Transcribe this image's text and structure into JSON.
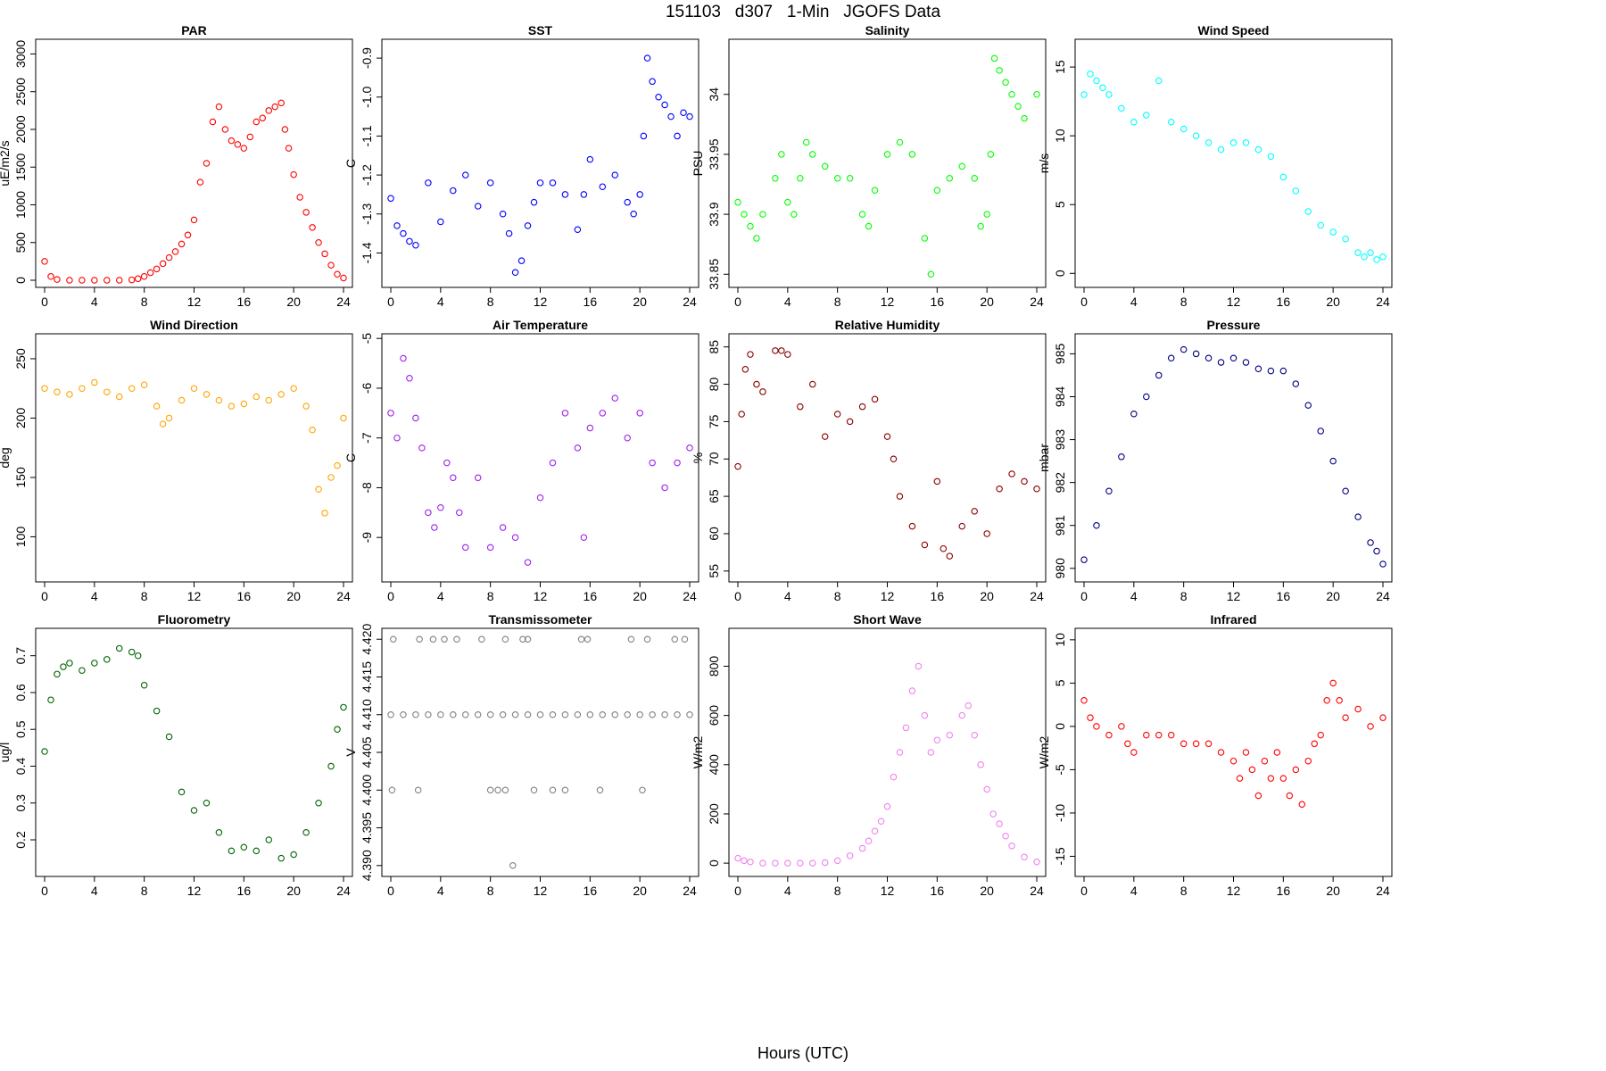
{
  "figure": {
    "title": "151103   d307   1-Min   JGOFS Data",
    "xlabel": "Hours (UTC)"
  },
  "chart_data": [
    {
      "type": "scatter",
      "title": "PAR",
      "ylabel": "uE/m2/s",
      "color": "#ff0000",
      "xlim": [
        0,
        24
      ],
      "ylim": [
        0,
        3100
      ],
      "xticks": [
        0,
        4,
        8,
        12,
        16,
        20,
        24
      ],
      "yticks": [
        0,
        500,
        1000,
        1500,
        2000,
        2500,
        3000
      ],
      "x": [
        0,
        0.5,
        1,
        2,
        3,
        4,
        5,
        6,
        7,
        7.5,
        8,
        8.5,
        9,
        9.5,
        10,
        10.5,
        11,
        11.5,
        12,
        12.5,
        13,
        13.5,
        14,
        14.5,
        15,
        15.5,
        16,
        16.5,
        17,
        17.5,
        18,
        18.5,
        19,
        19.3,
        19.6,
        20,
        20.5,
        21,
        21.5,
        22,
        22.5,
        23,
        23.5,
        24
      ],
      "y": [
        250,
        50,
        10,
        0,
        0,
        0,
        0,
        0,
        5,
        20,
        50,
        100,
        150,
        220,
        300,
        380,
        480,
        600,
        800,
        1300,
        1550,
        2100,
        2300,
        2000,
        1850,
        1800,
        1750,
        1900,
        2100,
        2150,
        2250,
        2300,
        2350,
        2000,
        1750,
        1400,
        1100,
        900,
        700,
        500,
        350,
        200,
        80,
        30
      ]
    },
    {
      "type": "scatter",
      "title": "SST",
      "ylabel": "C",
      "color": "#0000ff",
      "xlim": [
        0,
        24
      ],
      "ylim": [
        -1.47,
        -0.87
      ],
      "xticks": [
        0,
        4,
        8,
        12,
        16,
        20,
        24
      ],
      "yticks": [
        -1.4,
        -1.3,
        -1.2,
        -1.1,
        -1.0,
        -0.9
      ],
      "x": [
        0,
        0.5,
        1,
        1.5,
        2,
        3,
        4,
        5,
        6,
        7,
        8,
        9,
        9.5,
        10,
        10.5,
        11,
        11.5,
        12,
        13,
        14,
        15,
        15.5,
        16,
        17,
        18,
        19,
        19.5,
        20,
        20.3,
        20.6,
        21,
        21.5,
        22,
        22.5,
        23,
        23.5,
        24
      ],
      "y": [
        -1.26,
        -1.33,
        -1.35,
        -1.37,
        -1.38,
        -1.22,
        -1.32,
        -1.24,
        -1.2,
        -1.28,
        -1.22,
        -1.3,
        -1.35,
        -1.45,
        -1.42,
        -1.33,
        -1.27,
        -1.22,
        -1.22,
        -1.25,
        -1.34,
        -1.25,
        -1.16,
        -1.23,
        -1.2,
        -1.27,
        -1.3,
        -1.25,
        -1.1,
        -0.9,
        -0.96,
        -1.0,
        -1.02,
        -1.05,
        -1.1,
        -1.04,
        -1.05
      ]
    },
    {
      "type": "scatter",
      "title": "Salinity",
      "ylabel": "PSU",
      "color": "#00ff00",
      "xlim": [
        0,
        24
      ],
      "ylim": [
        33.845,
        34.04
      ],
      "xticks": [
        0,
        4,
        8,
        12,
        16,
        20,
        24
      ],
      "yticks": [
        33.85,
        33.9,
        33.95,
        34.0
      ],
      "x": [
        0,
        0.5,
        1,
        1.5,
        2,
        3,
        3.5,
        4,
        4.5,
        5,
        5.5,
        6,
        7,
        8,
        9,
        10,
        10.5,
        11,
        12,
        13,
        14,
        15,
        15.5,
        16,
        17,
        18,
        19,
        19.5,
        20,
        20.3,
        20.6,
        21,
        21.5,
        22,
        22.5,
        23,
        24
      ],
      "y": [
        33.91,
        33.9,
        33.89,
        33.88,
        33.9,
        33.93,
        33.95,
        33.91,
        33.9,
        33.93,
        33.96,
        33.95,
        33.94,
        33.93,
        33.93,
        33.9,
        33.89,
        33.92,
        33.95,
        33.96,
        33.95,
        33.88,
        33.85,
        33.92,
        33.93,
        33.94,
        33.93,
        33.89,
        33.9,
        33.95,
        34.03,
        34.02,
        34.01,
        34.0,
        33.99,
        33.98,
        34.0
      ]
    },
    {
      "type": "scatter",
      "title": "Wind Speed",
      "ylabel": "m/s",
      "color": "#00ffff",
      "xlim": [
        0,
        24
      ],
      "ylim": [
        -0.5,
        16.5
      ],
      "xticks": [
        0,
        4,
        8,
        12,
        16,
        20,
        24
      ],
      "yticks": [
        0,
        5,
        10,
        15
      ],
      "x": [
        0,
        0.5,
        1,
        1.5,
        2,
        3,
        4,
        5,
        6,
        7,
        8,
        9,
        10,
        11,
        12,
        13,
        14,
        15,
        16,
        17,
        18,
        19,
        20,
        21,
        22,
        22.5,
        23,
        23.5,
        24
      ],
      "y": [
        13,
        14.5,
        14,
        13.5,
        13,
        12,
        11,
        11.5,
        14,
        11,
        10.5,
        10,
        9.5,
        9,
        9.5,
        9.5,
        9,
        8.5,
        7,
        6,
        4.5,
        3.5,
        3,
        2.5,
        1.5,
        1.2,
        1.5,
        1,
        1.2
      ]
    },
    {
      "type": "scatter",
      "title": "Wind Direction",
      "ylabel": "deg",
      "color": "#ffa500",
      "xlim": [
        0,
        24
      ],
      "ylim": [
        68,
        265
      ],
      "xticks": [
        0,
        4,
        8,
        12,
        16,
        20,
        24
      ],
      "yticks": [
        100,
        150,
        200,
        250
      ],
      "x": [
        0,
        1,
        2,
        3,
        4,
        5,
        6,
        7,
        8,
        9,
        9.5,
        10,
        11,
        12,
        13,
        14,
        15,
        16,
        17,
        18,
        19,
        20,
        21,
        21.5,
        22,
        22.5,
        23,
        23.5,
        24
      ],
      "y": [
        225,
        222,
        220,
        225,
        230,
        222,
        218,
        225,
        228,
        210,
        195,
        200,
        215,
        225,
        220,
        215,
        210,
        212,
        218,
        215,
        220,
        225,
        210,
        190,
        140,
        120,
        150,
        160,
        200
      ]
    },
    {
      "type": "scatter",
      "title": "Air Temperature",
      "ylabel": "C",
      "color": "#a020f0",
      "xlim": [
        0,
        24
      ],
      "ylim": [
        -9.75,
        -5.05
      ],
      "xticks": [
        0,
        4,
        8,
        12,
        16,
        20,
        24
      ],
      "yticks": [
        -9,
        -8,
        -7,
        -6,
        -5
      ],
      "x": [
        0,
        0.5,
        1,
        1.5,
        2,
        2.5,
        3,
        3.5,
        4,
        4.5,
        5,
        5.5,
        6,
        7,
        8,
        9,
        10,
        11,
        12,
        13,
        14,
        15,
        15.5,
        16,
        17,
        18,
        19,
        20,
        21,
        22,
        23,
        24
      ],
      "y": [
        -6.5,
        -7.0,
        -5.4,
        -5.8,
        -6.6,
        -7.2,
        -8.5,
        -8.8,
        -8.4,
        -7.5,
        -7.8,
        -8.5,
        -9.2,
        -7.8,
        -9.2,
        -8.8,
        -9.0,
        -9.5,
        -8.2,
        -7.5,
        -6.5,
        -7.2,
        -9.0,
        -6.8,
        -6.5,
        -6.2,
        -7.0,
        -6.5,
        -7.5,
        -8.0,
        -7.5,
        -7.2
      ]
    },
    {
      "type": "scatter",
      "title": "Relative Humidity",
      "ylabel": "%",
      "color": "#8b0000",
      "xlim": [
        0,
        24
      ],
      "ylim": [
        54.5,
        85.8
      ],
      "xticks": [
        0,
        4,
        8,
        12,
        16,
        20,
        24
      ],
      "yticks": [
        55,
        60,
        65,
        70,
        75,
        80,
        85
      ],
      "x": [
        0,
        0.3,
        0.6,
        1,
        1.5,
        2,
        3,
        3.5,
        4,
        5,
        6,
        7,
        8,
        9,
        10,
        11,
        12,
        12.5,
        13,
        14,
        15,
        16,
        16.5,
        17,
        18,
        19,
        20,
        21,
        22,
        23,
        24
      ],
      "y": [
        69,
        76,
        82,
        84,
        80,
        79,
        84.5,
        84.5,
        84,
        77,
        80,
        73,
        76,
        75,
        77,
        78,
        73,
        70,
        65,
        61,
        58.5,
        67,
        58,
        57,
        61,
        63,
        60,
        66,
        68,
        67,
        66
      ]
    },
    {
      "type": "scatter",
      "title": "Pressure",
      "ylabel": "mbar",
      "color": "#000080",
      "xlim": [
        0,
        24
      ],
      "ylim": [
        979.85,
        985.3
      ],
      "xticks": [
        0,
        4,
        8,
        12,
        16,
        20,
        24
      ],
      "yticks": [
        980,
        981,
        982,
        983,
        984,
        985
      ],
      "x": [
        0,
        1,
        2,
        3,
        4,
        5,
        6,
        7,
        8,
        9,
        10,
        11,
        12,
        13,
        14,
        15,
        16,
        17,
        18,
        19,
        20,
        21,
        22,
        23,
        23.5,
        24
      ],
      "y": [
        980.2,
        981.0,
        981.8,
        982.6,
        983.6,
        984.0,
        984.5,
        984.9,
        985.1,
        985.0,
        984.9,
        984.8,
        984.9,
        984.8,
        984.65,
        984.6,
        984.6,
        984.3,
        983.8,
        983.2,
        982.5,
        981.8,
        981.2,
        980.6,
        980.4,
        980.1
      ]
    },
    {
      "type": "scatter",
      "title": "Fluorometry",
      "ylabel": "ug/l",
      "color": "#006400",
      "xlim": [
        0,
        24
      ],
      "ylim": [
        0.12,
        0.755
      ],
      "xticks": [
        0,
        4,
        8,
        12,
        16,
        20,
        24
      ],
      "yticks": [
        0.2,
        0.3,
        0.4,
        0.5,
        0.6,
        0.7
      ],
      "x": [
        0,
        0.5,
        1,
        1.5,
        2,
        3,
        4,
        5,
        6,
        7,
        7.5,
        8,
        9,
        10,
        11,
        12,
        13,
        14,
        15,
        16,
        17,
        18,
        19,
        20,
        21,
        22,
        23,
        23.5,
        24
      ],
      "y": [
        0.44,
        0.58,
        0.65,
        0.67,
        0.68,
        0.66,
        0.68,
        0.69,
        0.72,
        0.71,
        0.7,
        0.62,
        0.55,
        0.48,
        0.33,
        0.28,
        0.3,
        0.22,
        0.17,
        0.18,
        0.17,
        0.2,
        0.15,
        0.16,
        0.22,
        0.3,
        0.4,
        0.5,
        0.56
      ]
    },
    {
      "type": "scatter",
      "title": "Transmissometer",
      "ylabel": "V",
      "color": "#808080",
      "xlim": [
        0,
        24
      ],
      "ylim": [
        4.3895,
        4.4205
      ],
      "xticks": [
        0,
        4,
        8,
        12,
        16,
        20,
        24
      ],
      "yticks": [
        4.39,
        4.395,
        4.4,
        4.405,
        4.41,
        4.415,
        4.42
      ],
      "x": [
        0,
        1,
        2,
        3,
        4,
        5,
        6,
        7,
        8,
        9,
        10,
        11,
        12,
        13,
        14,
        15,
        16,
        17,
        18,
        19,
        20,
        21,
        22,
        23,
        24,
        0.2,
        2.3,
        3.4,
        4.3,
        5.3,
        7.3,
        9.2,
        10.6,
        11,
        15.3,
        15.8,
        19.3,
        20.6,
        22.8,
        23.6,
        0.1,
        2.2,
        8,
        8.6,
        9.2,
        11.5,
        13,
        14,
        16.8,
        20.2,
        9.8
      ],
      "y": [
        4.41,
        4.41,
        4.41,
        4.41,
        4.41,
        4.41,
        4.41,
        4.41,
        4.41,
        4.41,
        4.41,
        4.41,
        4.41,
        4.41,
        4.41,
        4.41,
        4.41,
        4.41,
        4.41,
        4.41,
        4.41,
        4.41,
        4.41,
        4.41,
        4.41,
        4.42,
        4.42,
        4.42,
        4.42,
        4.42,
        4.42,
        4.42,
        4.42,
        4.42,
        4.42,
        4.42,
        4.42,
        4.42,
        4.42,
        4.42,
        4.4,
        4.4,
        4.4,
        4.4,
        4.4,
        4.4,
        4.4,
        4.4,
        4.4,
        4.4,
        4.39
      ]
    },
    {
      "type": "scatter",
      "title": "Short Wave",
      "ylabel": "W/m2",
      "color": "#ee82ee",
      "xlim": [
        0,
        24
      ],
      "ylim": [
        -25,
        925
      ],
      "xticks": [
        0,
        4,
        8,
        12,
        16,
        20,
        24
      ],
      "yticks": [
        0,
        200,
        400,
        600,
        800
      ],
      "x": [
        0,
        0.5,
        1,
        2,
        3,
        4,
        5,
        6,
        7,
        8,
        9,
        10,
        10.5,
        11,
        11.5,
        12,
        12.5,
        13,
        13.5,
        14,
        14.5,
        15,
        15.5,
        16,
        17,
        18,
        18.5,
        19,
        19.5,
        20,
        20.5,
        21,
        21.5,
        22,
        23,
        24
      ],
      "y": [
        20,
        10,
        5,
        0,
        0,
        0,
        0,
        0,
        2,
        10,
        30,
        60,
        90,
        130,
        170,
        230,
        350,
        450,
        550,
        700,
        800,
        600,
        450,
        500,
        520,
        600,
        640,
        520,
        400,
        300,
        200,
        160,
        110,
        70,
        25,
        5
      ]
    },
    {
      "type": "scatter",
      "title": "Infrared",
      "ylabel": "W/m2",
      "color": "#ff0000",
      "xlim": [
        0,
        24
      ],
      "ylim": [
        -16.5,
        10.5
      ],
      "xticks": [
        0,
        4,
        8,
        12,
        16,
        20,
        24
      ],
      "yticks": [
        -15,
        -10,
        -5,
        0,
        5,
        10
      ],
      "x": [
        0,
        0.5,
        1,
        2,
        3,
        3.5,
        4,
        5,
        6,
        7,
        8,
        9,
        10,
        11,
        12,
        12.5,
        13,
        13.5,
        14,
        14.5,
        15,
        15.5,
        16,
        16.5,
        17,
        17.5,
        18,
        18.5,
        19,
        19.5,
        20,
        20.5,
        21,
        22,
        23,
        24
      ],
      "y": [
        3,
        1,
        0,
        -1,
        0,
        -2,
        -3,
        -1,
        -1,
        -1,
        -2,
        -2,
        -2,
        -3,
        -4,
        -6,
        -3,
        -5,
        -8,
        -4,
        -6,
        -3,
        -6,
        -8,
        -5,
        -9,
        -4,
        -2,
        -1,
        3,
        5,
        3,
        1,
        2,
        0,
        1
      ]
    }
  ]
}
